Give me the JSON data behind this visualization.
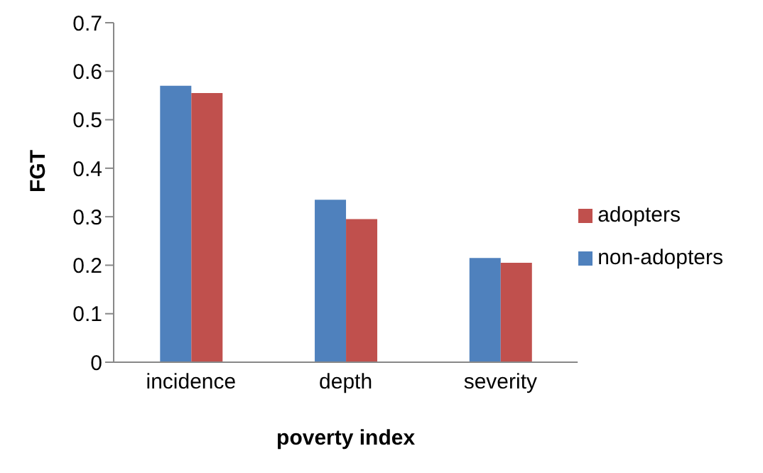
{
  "chart_data": {
    "type": "bar",
    "xlabel": "poverty index",
    "ylabel": "FGT",
    "categories": [
      "incidence",
      "depth",
      "severity"
    ],
    "series": [
      {
        "name": "non-adopters",
        "color": "#4f81bd",
        "values": [
          0.57,
          0.335,
          0.215
        ]
      },
      {
        "name": "adopters",
        "color": "#c0504d",
        "values": [
          0.555,
          0.295,
          0.205
        ]
      }
    ],
    "ylim": [
      0,
      0.7
    ],
    "yticks": [
      0,
      0.1,
      0.2,
      0.3,
      0.4,
      0.5,
      0.6,
      0.7
    ],
    "grid": false,
    "legend": "right"
  }
}
